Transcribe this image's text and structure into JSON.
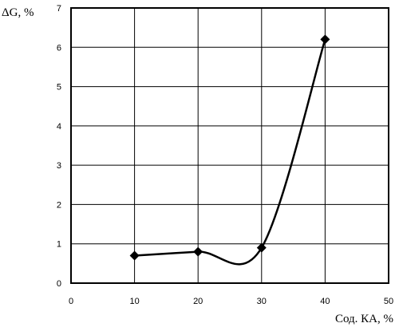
{
  "chart_data": {
    "type": "line",
    "title": "",
    "xlabel": "Сод. КА, %",
    "ylabel": "ΔG, %",
    "xlim": [
      0,
      50
    ],
    "ylim": [
      0,
      7
    ],
    "x_ticks": [
      0,
      10,
      20,
      30,
      40,
      50
    ],
    "y_ticks": [
      0,
      1,
      2,
      3,
      4,
      5,
      6,
      7
    ],
    "grid": true,
    "smooth": true,
    "marker": "diamond",
    "line_color": "#000000",
    "series": [
      {
        "x": [
          10,
          20,
          30,
          40
        ],
        "values": [
          0.7,
          0.8,
          0.9,
          6.2
        ]
      }
    ]
  }
}
